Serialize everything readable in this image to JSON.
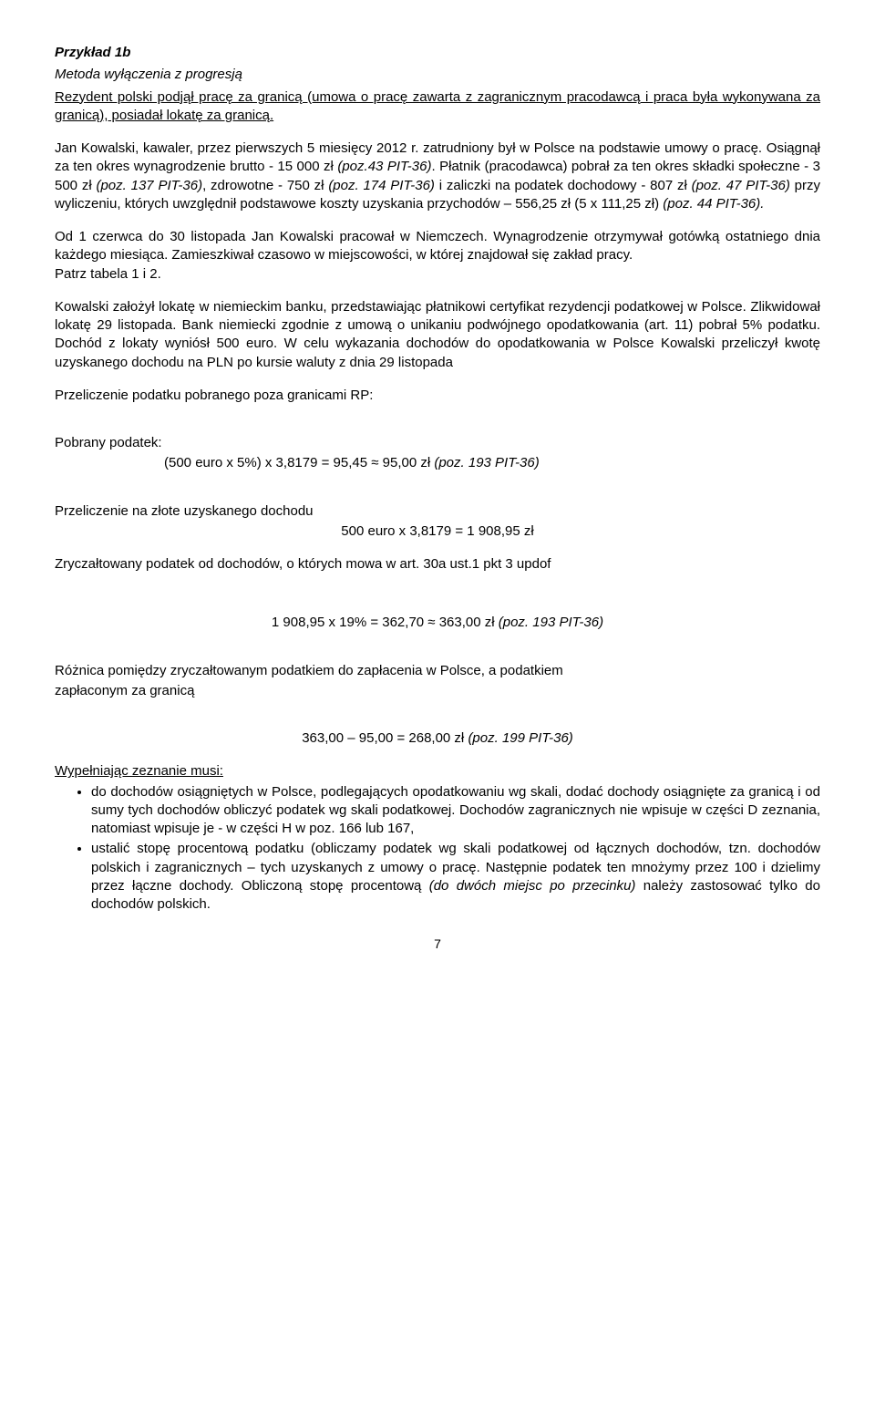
{
  "title_bold": "Przykład 1b",
  "title_italic": "Metoda wyłączenia z progresją",
  "intro": "Rezydent polski podjął pracę za granicą (umowa o pracę zawarta z zagranicznym pracodawcą i praca była wykonywana za granicą), posiadał lokatę za granicą.",
  "p1a": "Jan Kowalski, kawaler, przez pierwszych 5 miesięcy 2012 r. zatrudniony był w Polsce na podstawie umowy o pracę.",
  "p1b": "Osiągnął za ten okres wynagrodzenie brutto - 15 000 zł ",
  "p1b_it": "(poz.43 PIT-36)",
  "p1c": ". Płatnik (pracodawca) pobrał za ten okres składki społeczne - 3 500 zł ",
  "p1c_it": "(poz. 137 PIT-36)",
  "p1d": ", zdrowotne - 750 zł ",
  "p1d_it": "(poz. 174 PIT-36)",
  "p1e": " i zaliczki na podatek dochodowy - 807 zł ",
  "p1e_it": "(poz. 47 PIT-36)",
  "p1f": " przy wyliczeniu, których uwzględnił podstawowe koszty uzyskania przychodów – 556,25 zł (5 x 111,25 zł) ",
  "p1f_it": "(poz. 44 PIT-36).",
  "p2": "Od 1 czerwca do 30 listopada Jan Kowalski pracował w Niemczech. Wynagrodzenie otrzymywał gotówką ostatniego dnia każdego miesiąca. Zamieszkiwał czasowo w miejscowości, w której znajdował się zakład pracy.",
  "p2b": "Patrz tabela 1 i 2.",
  "p3": "Kowalski założył lokatę w niemieckim banku, przedstawiając płatnikowi certyfikat rezydencji podatkowej w Polsce. Zlikwidował lokatę 29 listopada. Bank niemiecki zgodnie z umową o unikaniu podwójnego opodatkowania (art. 11) pobrał 5% podatku. Dochód z lokaty wyniósł 500 euro. W celu wykazania dochodów do opodatkowania w Polsce Kowalski przeliczył kwotę uzyskanego dochodu na PLN po kursie waluty z dnia 29 listopada",
  "p4": "Przeliczenie podatku pobranego poza granicami RP:",
  "p5_label": "Pobrany podatek:",
  "p5_calc_a": "(500 euro x 5%) x 3,8179 = 95,45 ≈ 95,00 zł ",
  "p5_calc_it": "(poz. 193 PIT-36)",
  "p6": "Przeliczenie na złote uzyskanego dochodu",
  "p6_calc": "500 euro x 3,8179 = 1 908,95 zł",
  "p7": "Zryczałtowany podatek od dochodów, o których mowa w art. 30a ust.1 pkt 3 updof",
  "p7_calc_a": "1 908,95 x 19% = 362,70 ≈ 363,00 zł ",
  "p7_calc_it": "(poz. 193 PIT-36)",
  "p8a": "Różnica pomiędzy zryczałtowanym podatkiem do zapłacenia w Polsce, a podatkiem",
  "p8b": "zapłaconym za granicą",
  "p8_calc_a": "363,00 – 95,00 = 268,00 zł ",
  "p8_calc_it": "(poz. 199 PIT-36)",
  "must_label": "Wypełniając zeznanie musi:",
  "bullet1": "do dochodów osiągniętych w Polsce, podlegających opodatkowaniu wg skali, dodać dochody osiągnięte za granicą i od sumy tych dochodów obliczyć podatek wg skali podatkowej. Dochodów zagranicznych nie wpisuje w części D zeznania, natomiast wpisuje je - w części H w poz. 166 lub 167,",
  "bullet2a": "ustalić stopę procentową podatku (obliczamy podatek wg skali podatkowej od łącznych dochodów, tzn. dochodów polskich i zagranicznych – tych uzyskanych z umowy o pracę. Następnie podatek ten mnożymy przez 100 i dzielimy przez łączne dochody. Obliczoną stopę procentową ",
  "bullet2_it": "(do dwóch miejsc po przecinku)",
  "bullet2b": " należy zastosować tylko do dochodów polskich.",
  "page_number": "7"
}
